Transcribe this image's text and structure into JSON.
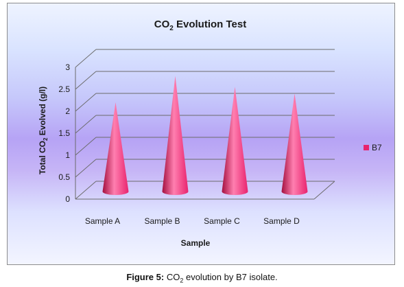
{
  "chart_data": {
    "type": "bar",
    "bar_shape": "3d-cone",
    "title": {
      "prefix": "CO",
      "subscript": "2",
      "suffix": " Evolution Test"
    },
    "xlabel": "Sample",
    "ylabel": {
      "prefix": "Total CO",
      "subscript": "2",
      "suffix": " Evolved (g/l)"
    },
    "categories": [
      "Sample A",
      "Sample B",
      "Sample C",
      "Sample D"
    ],
    "series": [
      {
        "name": "B7",
        "values": [
          2.0,
          2.6,
          2.35,
          2.2
        ]
      }
    ],
    "ylim": [
      0,
      3
    ],
    "y_ticks": [
      "0",
      "0.5",
      "1",
      "1.5",
      "2",
      "2.5",
      "3"
    ],
    "grid": true,
    "legend_position": "right",
    "colors": {
      "series": "#e8246e",
      "series_dark": "#a3103f",
      "series_light": "#ff7fb0",
      "grid": "#6b6b6b"
    }
  },
  "caption": {
    "label": "Figure 5:",
    "text_before": " CO",
    "subscript": "2",
    "text_after": " evolution by B7 isolate."
  }
}
